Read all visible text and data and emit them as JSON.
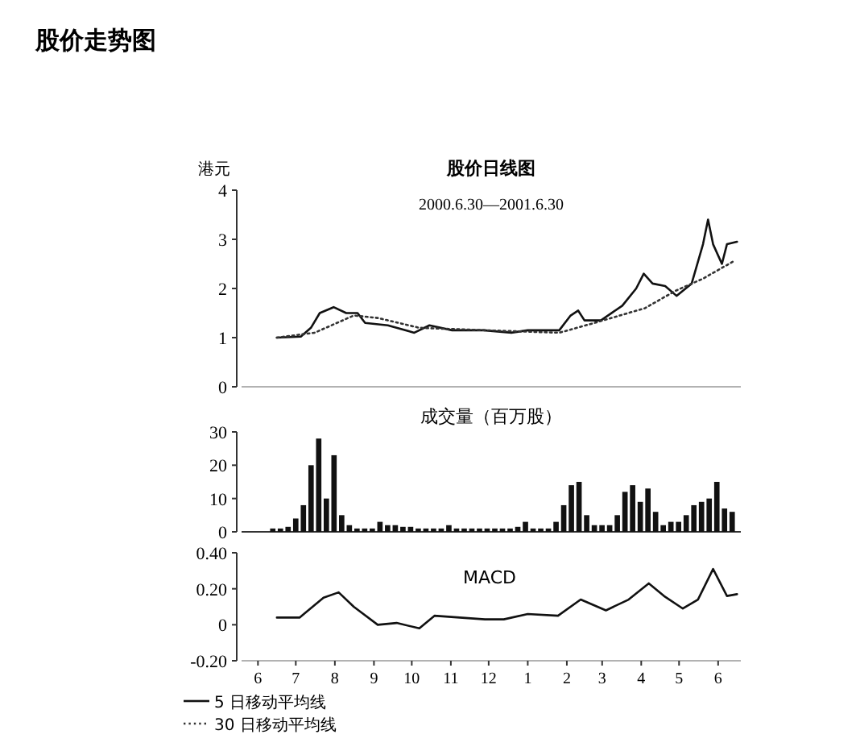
{
  "chart_data": [
    {
      "type": "line",
      "title": "股价日线图",
      "subtitle": "2000.6.30—2001.6.30",
      "ylabel": "港元",
      "annotations": [
        "股价走势图"
      ],
      "xlim": [
        "2000-06-02",
        "2001-07-03"
      ],
      "ylim": [
        0,
        4
      ],
      "yticks": [
        0,
        1,
        2,
        3,
        4
      ],
      "tick_labels": "y",
      "legend": "bottom",
      "series": [
        {
          "name": "5 日移动平均线",
          "color": "#111111",
          "line_style": "solid",
          "x": [
            "2000-06-30",
            "2000-07-19",
            "2000-07-27",
            "2000-08-03",
            "2000-08-14",
            "2000-08-24",
            "2000-09-02",
            "2000-09-08",
            "2000-09-26",
            "2000-10-17",
            "2000-10-29",
            "2000-11-16",
            "2000-12-11",
            "2001-01-02",
            "2001-01-15",
            "2001-02-09",
            "2001-02-18",
            "2001-02-24",
            "2001-03-01",
            "2001-03-14",
            "2001-03-31",
            "2001-04-11",
            "2001-04-17",
            "2001-04-24",
            "2001-05-04",
            "2001-05-13",
            "2001-05-25",
            "2001-06-03",
            "2001-06-07",
            "2001-06-11",
            "2001-06-18",
            "2001-06-22",
            "2001-06-30"
          ],
          "values": [
            1.0,
            1.02,
            1.2,
            1.5,
            1.62,
            1.5,
            1.5,
            1.3,
            1.25,
            1.1,
            1.25,
            1.15,
            1.15,
            1.1,
            1.15,
            1.15,
            1.45,
            1.55,
            1.35,
            1.35,
            1.65,
            2.0,
            2.3,
            2.1,
            2.05,
            1.85,
            2.1,
            2.9,
            3.4,
            2.9,
            2.5,
            2.9,
            2.95
          ]
        },
        {
          "name": "30 日移动平均线",
          "color": "#333333",
          "line_style": "dotted",
          "x": [
            "2000-06-30",
            "2000-07-30",
            "2000-08-30",
            "2000-09-18",
            "2000-10-21",
            "2000-12-12",
            "2001-02-09",
            "2001-03-09",
            "2001-04-18",
            "2001-05-12",
            "2001-06-03",
            "2001-06-27"
          ],
          "values": [
            1.0,
            1.1,
            1.45,
            1.4,
            1.2,
            1.15,
            1.1,
            1.3,
            1.6,
            1.95,
            2.2,
            2.55
          ]
        }
      ]
    },
    {
      "type": "bar",
      "title": "成交量（百万股）",
      "color": "#111111",
      "ylim": [
        0,
        30
      ],
      "yticks": [
        0,
        10,
        20,
        30
      ],
      "categories": [
        null,
        null,
        null,
        null,
        null,
        null,
        null,
        null,
        null,
        null,
        null,
        null,
        null,
        null,
        null,
        null,
        null,
        null,
        null,
        null,
        null,
        null,
        null,
        null,
        null,
        null,
        null,
        null,
        null,
        null,
        null,
        null,
        null,
        null,
        null,
        null,
        null,
        null,
        null,
        null,
        null,
        null,
        null,
        null,
        null,
        null,
        null,
        null,
        null,
        null,
        null,
        null,
        null,
        null,
        null,
        null,
        null,
        null,
        null,
        null,
        null
      ],
      "values": [
        1,
        1,
        1.5,
        4,
        8,
        20,
        28,
        10,
        23,
        5,
        2,
        1,
        1,
        1,
        3,
        2,
        2,
        1.5,
        1.5,
        1,
        1,
        1,
        1,
        2,
        1,
        1,
        1,
        1,
        1,
        1,
        1,
        1,
        1.5,
        3,
        1,
        1,
        1,
        3,
        8,
        14,
        15,
        5,
        2,
        2,
        2,
        5,
        12,
        14,
        9,
        13,
        6,
        2,
        3,
        3,
        5,
        8,
        9,
        10,
        15,
        7,
        6
      ]
    },
    {
      "type": "line",
      "title": "MACD",
      "color": "#111111",
      "xlim": [
        "2000-06-02",
        "2001-07-03"
      ],
      "ylim": [
        -0.2,
        0.4
      ],
      "yticks": [
        {
          "value": -0.2,
          "label": "-0.20"
        },
        0,
        {
          "value": 0.2,
          "label": "0.20"
        },
        {
          "value": 0.4,
          "label": "0.40"
        }
      ],
      "xticks": [
        {
          "value": "2000-06-15",
          "label": "6"
        },
        {
          "value": "2000-07-15",
          "label": "7"
        },
        {
          "value": "2000-08-15",
          "label": "8"
        },
        {
          "value": "2000-09-15",
          "label": "9"
        },
        {
          "value": "2000-10-15",
          "label": "10"
        },
        {
          "value": "2000-11-15",
          "label": "11"
        },
        {
          "value": "2000-12-15",
          "label": "12"
        },
        {
          "value": "2001-01-15",
          "label": "1"
        },
        {
          "value": "2001-02-15",
          "label": "2"
        },
        {
          "value": "2001-03-15",
          "label": "3"
        },
        {
          "value": "2001-04-15",
          "label": "4"
        },
        {
          "value": "2001-05-15",
          "label": "5"
        },
        {
          "value": "2001-06-15",
          "label": "6"
        }
      ],
      "x": [
        "2000-06-30",
        "2000-07-18",
        "2000-08-06",
        "2000-08-18",
        "2000-08-30",
        "2000-09-18",
        "2000-10-03",
        "2000-10-21",
        "2000-11-02",
        "2000-12-12",
        "2000-12-27",
        "2001-01-15",
        "2001-02-08",
        "2001-02-26",
        "2001-03-18",
        "2001-04-05",
        "2001-04-21",
        "2001-05-03",
        "2001-05-18",
        "2001-05-30",
        "2001-06-11",
        "2001-06-22",
        "2001-06-30"
      ],
      "values": [
        0.04,
        0.04,
        0.15,
        0.18,
        0.1,
        0.0,
        0.01,
        -0.02,
        0.05,
        0.03,
        0.03,
        0.06,
        0.05,
        0.14,
        0.08,
        0.14,
        0.23,
        0.16,
        0.09,
        0.14,
        0.31,
        0.16,
        0.17
      ]
    }
  ]
}
